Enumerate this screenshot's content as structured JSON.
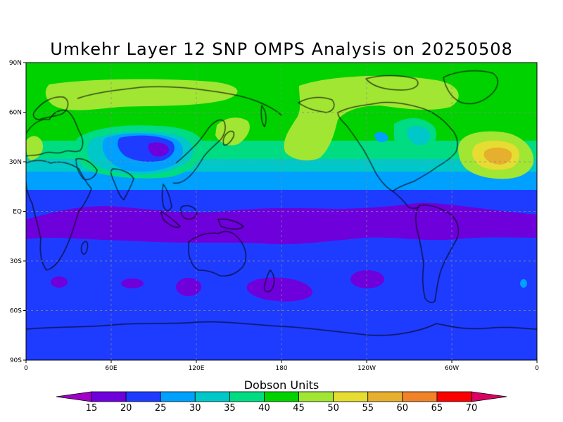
{
  "title": "Umkehr Layer 12 SNP OMPS Analysis on 20250508",
  "colorbar": {
    "title": "Dobson Units",
    "levels": [
      15,
      20,
      25,
      30,
      35,
      40,
      45,
      50,
      55,
      60,
      65,
      70
    ],
    "colors": [
      "#a000c8",
      "#6e00dc",
      "#1e3cff",
      "#00a0ff",
      "#00c8c8",
      "#00dc82",
      "#00d200",
      "#a0e632",
      "#e6dc32",
      "#e6af2d",
      "#f08228",
      "#fa0000",
      "#dc0064"
    ]
  },
  "map": {
    "lat_labels": [
      "90N",
      "60N",
      "30N",
      "EQ",
      "30S",
      "60S",
      "90S"
    ],
    "lon_labels": [
      "0",
      "60E",
      "120E",
      "180",
      "120W",
      "60W",
      "0"
    ],
    "grid": "dashed at 30° intervals",
    "projection": "cylindrical equidistant, 0°–360°"
  }
}
